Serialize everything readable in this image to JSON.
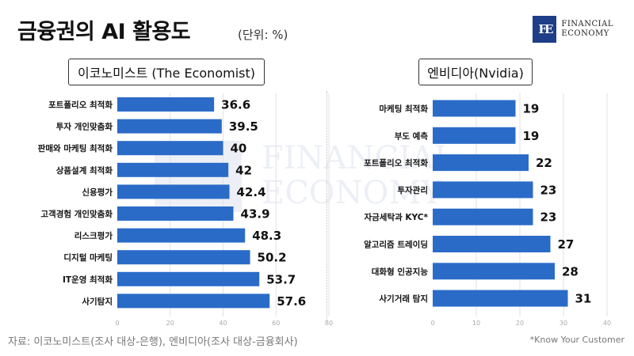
{
  "header": {
    "title": "금융권의 AI 활용도",
    "unit": "(단위: %)"
  },
  "logo": {
    "mark": "FE",
    "line1": "FINANCIAL",
    "line2": "ECONOMY"
  },
  "watermark": {
    "line1": "FINANCIAL",
    "line2": "ECONOMY"
  },
  "colors": {
    "bar": "#2a6bc8",
    "brand": "#1e3f87"
  },
  "chart_data": [
    {
      "type": "bar",
      "orientation": "horizontal",
      "title": "이코노미스트 (The Economist)",
      "categories": [
        "포트폴리오 최적화",
        "투자 개인맞춤화",
        "판매와 마케팅 최적화",
        "상품설계 최적화",
        "신용평가",
        "고객경험 개인맞춤화",
        "리스크평가",
        "디지털 마케팅",
        "IT운영 최적화",
        "사기탐지"
      ],
      "values": [
        36.6,
        39.5,
        40,
        42,
        42.4,
        43.9,
        48.3,
        50.2,
        53.7,
        57.6
      ],
      "labels": [
        "36.6",
        "39.5",
        "40",
        "42",
        "42.4",
        "43.9",
        "48.3",
        "50.2",
        "53.7",
        "57.6"
      ],
      "xlim": [
        0,
        80
      ],
      "ticks": [
        "0",
        "20",
        "40",
        "60",
        "80"
      ],
      "grid": true
    },
    {
      "type": "bar",
      "orientation": "horizontal",
      "title": "엔비디아(Nvidia)",
      "categories": [
        "마케팅 최적화",
        "부도 예측",
        "포트폴리오 최적화",
        "투자관리",
        "자금세탁과 KYC*",
        "알고리즘 트레이딩",
        "대화형 인공지능",
        "사기거래 탐지"
      ],
      "values": [
        19,
        19,
        22,
        23,
        23,
        27,
        28,
        31
      ],
      "labels": [
        "19",
        "19",
        "22",
        "23",
        "23",
        "27",
        "28",
        "31"
      ],
      "xlim": [
        0,
        40
      ],
      "ticks": [
        "0",
        "10",
        "20",
        "30",
        "40"
      ],
      "grid": true
    }
  ],
  "footer": {
    "source": "자료: 이코노미스트(조사 대상-은행), 엔비디아(조사 대상-금융회사)",
    "note": "*Know Your Customer"
  }
}
